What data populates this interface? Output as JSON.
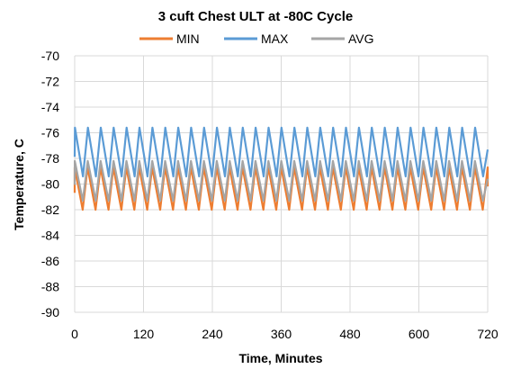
{
  "chart_data": {
    "type": "line",
    "title": "3 cuft Chest ULT at -80C Cycle",
    "xlabel": "Time, Minutes",
    "ylabel": "Temperature, C",
    "xlim": [
      0,
      720
    ],
    "ylim": [
      -90,
      -70
    ],
    "x_ticks": [
      "0",
      "120",
      "240",
      "360",
      "480",
      "600",
      "720"
    ],
    "y_ticks": [
      "-70",
      "-72",
      "-74",
      "-76",
      "-78",
      "-80",
      "-82",
      "-84",
      "-86",
      "-88",
      "-90"
    ],
    "grid": true,
    "legend_position": "top",
    "cycle": {
      "period_minutes": 22.5,
      "cycles": 32
    },
    "series": [
      {
        "name": "MIN",
        "color": "#ED7D31",
        "peak": -78.7,
        "trough": -82.0
      },
      {
        "name": "MAX",
        "color": "#5B9BD5",
        "peak": -75.6,
        "trough": -79.4
      },
      {
        "name": "AVG",
        "color": "#A5A5A5",
        "peak": -78.2,
        "trough": -81.3
      }
    ]
  }
}
